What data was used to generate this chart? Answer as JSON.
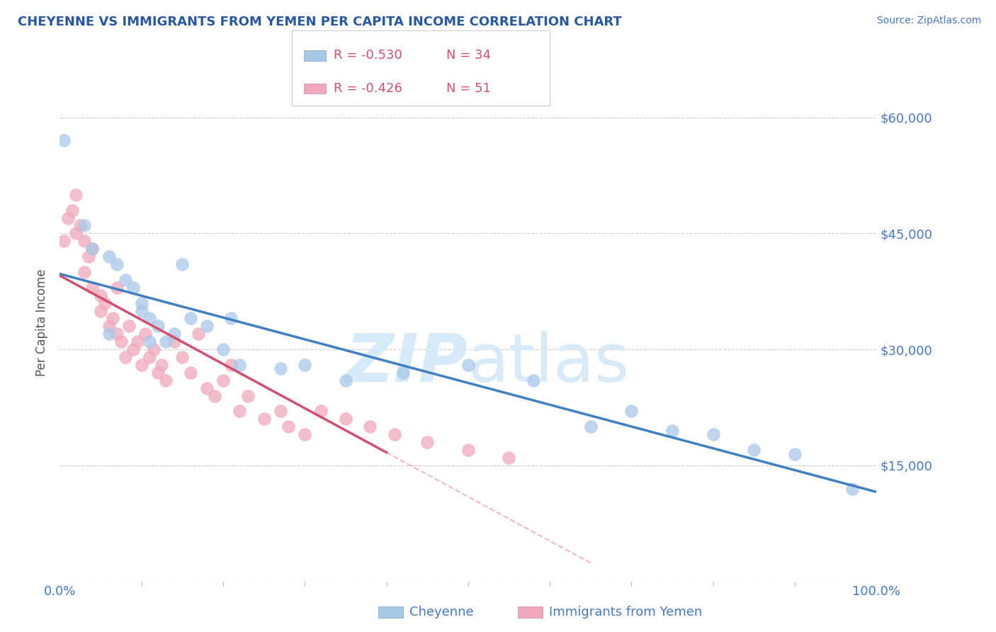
{
  "title": "CHEYENNE VS IMMIGRANTS FROM YEMEN PER CAPITA INCOME CORRELATION CHART",
  "source_text": "Source: ZipAtlas.com",
  "ylabel": "Per Capita Income",
  "xlim": [
    0.0,
    1.0
  ],
  "ylim": [
    0,
    67000
  ],
  "yticks": [
    0,
    15000,
    30000,
    45000,
    60000
  ],
  "ytick_labels": [
    "",
    "$15,000",
    "$30,000",
    "$45,000",
    "$60,000"
  ],
  "xtick_labels": [
    "0.0%",
    "100.0%"
  ],
  "legend_r1": "R = -0.530",
  "legend_n1": "N = 34",
  "legend_r2": "R = -0.426",
  "legend_n2": "N = 51",
  "label1": "Cheyenne",
  "label2": "Immigrants from Yemen",
  "color1": "#A8C8E8",
  "color2": "#F0A8BC",
  "line_color1": "#4080C0",
  "line_color2": "#D05070",
  "title_color": "#2858A0",
  "axis_color": "#4878C0",
  "source_color": "#4878C0",
  "watermark_color": "#D8EAF8",
  "background_color": "#FFFFFF",
  "cheyenne_x": [
    0.005,
    0.03,
    0.04,
    0.06,
    0.06,
    0.07,
    0.08,
    0.09,
    0.1,
    0.1,
    0.11,
    0.11,
    0.12,
    0.13,
    0.14,
    0.15,
    0.16,
    0.18,
    0.2,
    0.21,
    0.22,
    0.27,
    0.3,
    0.35,
    0.42,
    0.5,
    0.58,
    0.65,
    0.7,
    0.75,
    0.8,
    0.85,
    0.9,
    0.97
  ],
  "cheyenne_y": [
    57000,
    46000,
    43000,
    42000,
    32000,
    41000,
    39000,
    38000,
    36000,
    35000,
    34000,
    31000,
    33000,
    31000,
    32000,
    41000,
    34000,
    33000,
    30000,
    34000,
    28000,
    27500,
    28000,
    26000,
    27000,
    28000,
    26000,
    20000,
    22000,
    19500,
    19000,
    17000,
    16500,
    12000
  ],
  "yemen_x": [
    0.005,
    0.01,
    0.015,
    0.02,
    0.02,
    0.025,
    0.03,
    0.03,
    0.035,
    0.04,
    0.04,
    0.05,
    0.05,
    0.055,
    0.06,
    0.065,
    0.07,
    0.07,
    0.075,
    0.08,
    0.085,
    0.09,
    0.095,
    0.1,
    0.105,
    0.11,
    0.115,
    0.12,
    0.125,
    0.13,
    0.14,
    0.15,
    0.16,
    0.17,
    0.18,
    0.19,
    0.2,
    0.21,
    0.22,
    0.23,
    0.25,
    0.27,
    0.28,
    0.3,
    0.32,
    0.35,
    0.38,
    0.41,
    0.45,
    0.5,
    0.55
  ],
  "yemen_y": [
    44000,
    47000,
    48000,
    50000,
    45000,
    46000,
    44000,
    40000,
    42000,
    43000,
    38000,
    37000,
    35000,
    36000,
    33000,
    34000,
    38000,
    32000,
    31000,
    29000,
    33000,
    30000,
    31000,
    28000,
    32000,
    29000,
    30000,
    27000,
    28000,
    26000,
    31000,
    29000,
    27000,
    32000,
    25000,
    24000,
    26000,
    28000,
    22000,
    24000,
    21000,
    22000,
    20000,
    19000,
    22000,
    21000,
    20000,
    19000,
    18000,
    17000,
    16000
  ]
}
